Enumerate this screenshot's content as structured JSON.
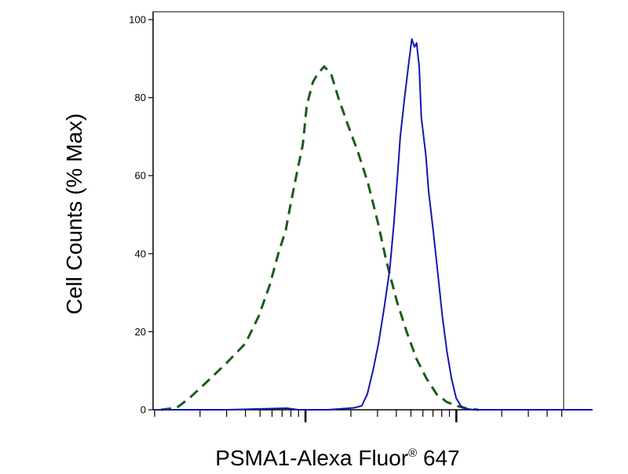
{
  "chart_data": {
    "type": "line",
    "title": "",
    "xlabel": "PSMA1-Alexa Fluor",
    "xlabel_superscript": "®",
    "xlabel_suffix": " 647",
    "ylabel": "Cell Counts (% Max)",
    "x_scale": "log",
    "xlim": [
      1,
      1000
    ],
    "ylim": [
      0,
      100
    ],
    "y_ticks": [
      0,
      20,
      40,
      60,
      80,
      100
    ],
    "y_tick_labels": [
      "0",
      "20",
      "40",
      "60",
      "80",
      "100"
    ],
    "x_major_ticks": [
      10,
      100
    ],
    "x_tick_labels": [],
    "grid": false,
    "legend": false,
    "series": [
      {
        "style": "dashed",
        "color": "#1a5c1a",
        "points": [
          [
            1.1,
            0
          ],
          [
            1.4,
            0.5
          ],
          [
            1.7,
            3
          ],
          [
            2.2,
            7
          ],
          [
            3.0,
            12
          ],
          [
            4.0,
            17
          ],
          [
            4.9,
            24
          ],
          [
            5.8,
            32
          ],
          [
            6.6,
            40
          ],
          [
            7.4,
            46
          ],
          [
            8.0,
            53
          ],
          [
            8.7,
            60
          ],
          [
            9.6,
            68
          ],
          [
            10.2,
            78
          ],
          [
            11.2,
            84
          ],
          [
            12.0,
            86
          ],
          [
            13.3,
            88
          ],
          [
            14.8,
            86
          ],
          [
            16.5,
            80
          ],
          [
            19.1,
            73
          ],
          [
            22.3,
            66
          ],
          [
            26.0,
            58
          ],
          [
            30.2,
            48
          ],
          [
            34.4,
            38
          ],
          [
            40.2,
            28
          ],
          [
            46.8,
            20
          ],
          [
            54.5,
            13
          ],
          [
            63.5,
            8
          ],
          [
            74.0,
            4
          ],
          [
            86.3,
            2
          ],
          [
            100.6,
            1
          ],
          [
            117.2,
            0.3
          ],
          [
            140,
            0
          ]
        ]
      },
      {
        "style": "solid",
        "color": "#1414b4",
        "points": [
          [
            1.0,
            0
          ],
          [
            3.0,
            0
          ],
          [
            7.5,
            0.4
          ],
          [
            9.0,
            0
          ],
          [
            14.0,
            0
          ],
          [
            18.0,
            0.3
          ],
          [
            21.0,
            0.5
          ],
          [
            23.6,
            1
          ],
          [
            25.7,
            4
          ],
          [
            28.0,
            10
          ],
          [
            30.5,
            17
          ],
          [
            33.2,
            26
          ],
          [
            36.2,
            36
          ],
          [
            38.6,
            48
          ],
          [
            41.1,
            62
          ],
          [
            42.5,
            70
          ],
          [
            45.4,
            80
          ],
          [
            48.4,
            89
          ],
          [
            50.7,
            95
          ],
          [
            52.8,
            93
          ],
          [
            54.5,
            94
          ],
          [
            56.7,
            88
          ],
          [
            58.6,
            75
          ],
          [
            62.9,
            65
          ],
          [
            65.5,
            56
          ],
          [
            70.2,
            46
          ],
          [
            75.3,
            35
          ],
          [
            80.8,
            24
          ],
          [
            86.6,
            15
          ],
          [
            92.9,
            8
          ],
          [
            99.7,
            3
          ],
          [
            107.0,
            1
          ],
          [
            114.8,
            0.3
          ],
          [
            130,
            0
          ],
          [
            300,
            0
          ],
          [
            800,
            0
          ]
        ]
      }
    ]
  }
}
